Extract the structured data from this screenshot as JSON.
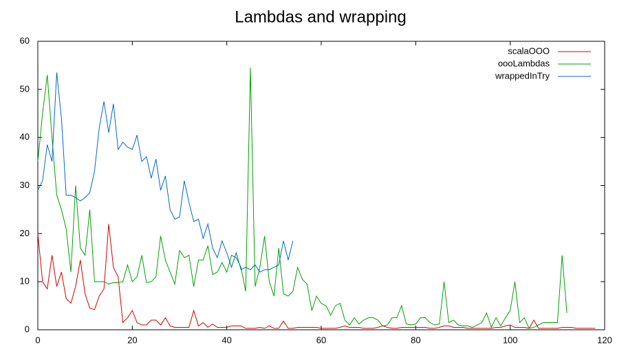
{
  "chart_data": {
    "type": "line",
    "title": "Lambdas and wrapping",
    "x": [
      0,
      1,
      2,
      3,
      4,
      5,
      6,
      7,
      8,
      9,
      10,
      11,
      12,
      13,
      14,
      15,
      16,
      17,
      18,
      19,
      20,
      21,
      22,
      23,
      24,
      25,
      26,
      27,
      28,
      29,
      30,
      31,
      32,
      33,
      34,
      35,
      36,
      37,
      38,
      39,
      40,
      41,
      42,
      43,
      44,
      45,
      46,
      47,
      48,
      49,
      50,
      51,
      52,
      53,
      54,
      55,
      56,
      57,
      58,
      59,
      60,
      61,
      62,
      63,
      64,
      65,
      66,
      67,
      68,
      69,
      70,
      71,
      72,
      73,
      74,
      75,
      76,
      77,
      78,
      79,
      80,
      81,
      82,
      83,
      84,
      85,
      86,
      87,
      88,
      89,
      90,
      91,
      92,
      93,
      94,
      95,
      96,
      97,
      98,
      99,
      100,
      101,
      102,
      103,
      104,
      105,
      106,
      107,
      108,
      109,
      110,
      111,
      112,
      113,
      114,
      115,
      116,
      117,
      118
    ],
    "series": [
      {
        "name": "scalaOOO",
        "color": "#d00000",
        "values": [
          20,
          10,
          8.5,
          15.5,
          9,
          12,
          6.5,
          5.5,
          9,
          14.5,
          7.5,
          4.5,
          4.2,
          7,
          8.5,
          22,
          13,
          11,
          1.5,
          2.5,
          4,
          1.5,
          1,
          1,
          2,
          2,
          1,
          2.5,
          0.8,
          0.5,
          0.5,
          0.5,
          0.5,
          4,
          0.8,
          1.5,
          0.5,
          1.2,
          0.5,
          0.5,
          0.5,
          0.8,
          0.8,
          0.8,
          0.3,
          0.3,
          0.3,
          0.5,
          0.3,
          0.8,
          0.3,
          0.3,
          1.8,
          0.3,
          0.3,
          0.5,
          0.5,
          0.5,
          0.5,
          0.5,
          0.3,
          0.3,
          0.3,
          0.3,
          0.5,
          0.8,
          0.5,
          0.5,
          0.5,
          0.3,
          0.3,
          0.3,
          0.5,
          0.8,
          0.5,
          0.3,
          0.3,
          0.5,
          0.5,
          0.5,
          0.5,
          0.5,
          0.5,
          0.3,
          0.3,
          0.5,
          0.8,
          0.8,
          0.5,
          0.5,
          0.5,
          0.3,
          0.3,
          0.3,
          0.3,
          0.3,
          0.3,
          0.5,
          0.5,
          0.8,
          1,
          0.5,
          0.5,
          0.5,
          0.3,
          2,
          0.3,
          0.3,
          0.3,
          0.3,
          0.3,
          0.5,
          0.5,
          0.5,
          0.3,
          0.3,
          0.3,
          0.3,
          0.3
        ]
      },
      {
        "name": "oooLambdas",
        "color": "#00a000",
        "values": [
          35,
          45,
          53,
          40,
          28,
          25,
          21,
          12,
          30,
          17,
          15.5,
          25,
          10,
          10,
          10,
          9.5,
          9.8,
          9.8,
          10,
          13.5,
          10,
          11,
          15.5,
          9.8,
          10,
          11,
          19.5,
          14.5,
          12,
          9.5,
          16.5,
          15,
          15.5,
          9,
          14.5,
          14.5,
          17.5,
          11.5,
          12,
          14,
          12,
          15.5,
          15,
          13,
          8,
          54.5,
          9,
          13,
          19.5,
          10,
          7,
          17,
          7.5,
          7,
          8,
          13,
          10.5,
          9.5,
          4,
          7,
          5.5,
          5,
          3,
          5,
          5.5,
          2,
          1,
          2.5,
          1.2,
          2,
          2.5,
          2.5,
          2,
          0.8,
          1,
          2.5,
          2.5,
          5,
          1.2,
          1,
          1.2,
          2.5,
          2.5,
          1.5,
          1,
          1.2,
          10,
          1.5,
          2,
          1,
          0.8,
          0.8,
          0.5,
          1,
          1.5,
          3.5,
          0.5,
          2.5,
          0.8,
          2.5,
          4,
          10,
          1.5,
          2.5,
          0.3,
          0.5,
          1,
          1.5,
          1.5,
          1.5,
          1.5,
          15.5,
          3.5,
          null,
          null,
          null,
          null,
          null,
          null
        ]
      },
      {
        "name": "wrappedInTry",
        "color": "#0066cc",
        "values": [
          29,
          31,
          38.5,
          35,
          53.5,
          44,
          28,
          28,
          27.5,
          26.8,
          27.5,
          28.5,
          33,
          42,
          47.5,
          41,
          47,
          37.5,
          39,
          38,
          37.5,
          40.5,
          35,
          36,
          31.5,
          35.5,
          29,
          32,
          25,
          23,
          23.5,
          31,
          26.5,
          22.5,
          23,
          19,
          22,
          17,
          15,
          18.5,
          16,
          13,
          16,
          12.5,
          13,
          12.5,
          13.5,
          12,
          12.5,
          12.5,
          13,
          13.5,
          18.5,
          14.5,
          18.5,
          null,
          null,
          null,
          null,
          null,
          null,
          null,
          null,
          null,
          null,
          null,
          null,
          null,
          null,
          null,
          null,
          null,
          null,
          null,
          null,
          null,
          null,
          null,
          null,
          null,
          null,
          null,
          null,
          null,
          null,
          null,
          null,
          null,
          null,
          null,
          null,
          null,
          null,
          null,
          null,
          null,
          null,
          null,
          null,
          null,
          null,
          null,
          null,
          null,
          null,
          null,
          null,
          null,
          null,
          null,
          null,
          null,
          null,
          null,
          null,
          null,
          null,
          null,
          null
        ]
      }
    ],
    "xlim": [
      0,
      120
    ],
    "xticks": [
      0,
      20,
      40,
      60,
      80,
      100,
      120
    ],
    "ylim": [
      0,
      60
    ],
    "yticks": [
      0,
      10,
      20,
      30,
      40,
      50,
      60
    ],
    "legend": "top-right"
  }
}
